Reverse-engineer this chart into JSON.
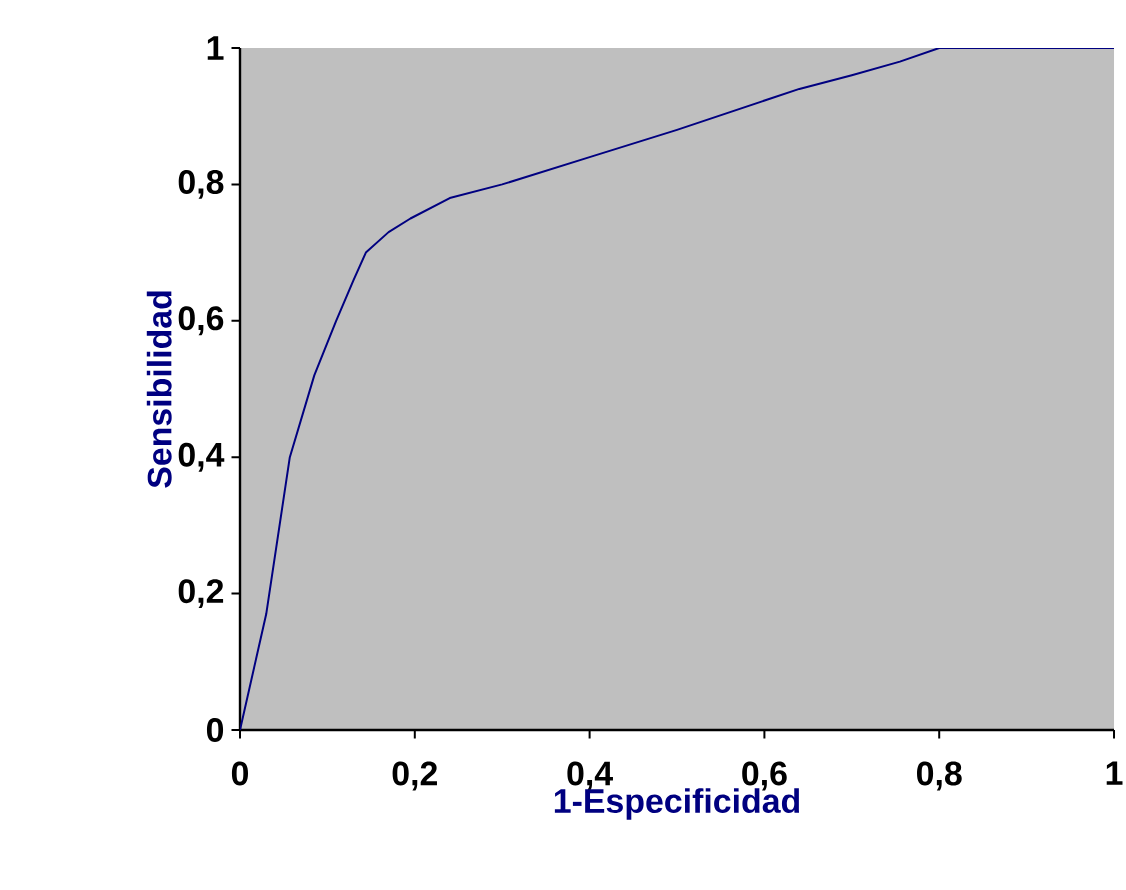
{
  "chart_data": {
    "type": "line",
    "xlabel": "1-Especificidad",
    "ylabel": "Sensibilidad",
    "x": [
      0,
      0.03,
      0.057,
      0.085,
      0.11,
      0.13,
      0.144,
      0.17,
      0.195,
      0.24,
      0.3,
      0.4,
      0.5,
      0.57,
      0.64,
      0.7,
      0.755,
      0.8,
      0.9,
      1
    ],
    "series": [
      {
        "color": "#000080",
        "values": [
          0,
          0.17,
          0.4,
          0.52,
          0.6,
          0.66,
          0.7,
          0.73,
          0.75,
          0.78,
          0.8,
          0.84,
          0.88,
          0.91,
          0.94,
          0.96,
          0.98,
          1,
          1,
          1
        ]
      }
    ],
    "xlim": [
      0,
      1
    ],
    "ylim": [
      0,
      1
    ],
    "xticks": [
      0,
      {
        "value": 0.2,
        "label": "0,2"
      },
      {
        "value": 0.4,
        "label": "0,4"
      },
      {
        "value": 0.6,
        "label": "0,6"
      },
      {
        "value": 0.8,
        "label": "0,8"
      },
      1
    ],
    "yticks": [
      0,
      {
        "value": 0.2,
        "label": "0,2"
      },
      {
        "value": 0.4,
        "label": "0,4"
      },
      {
        "value": 0.6,
        "label": "0,6"
      },
      {
        "value": 0.8,
        "label": "0,8"
      },
      1
    ]
  }
}
